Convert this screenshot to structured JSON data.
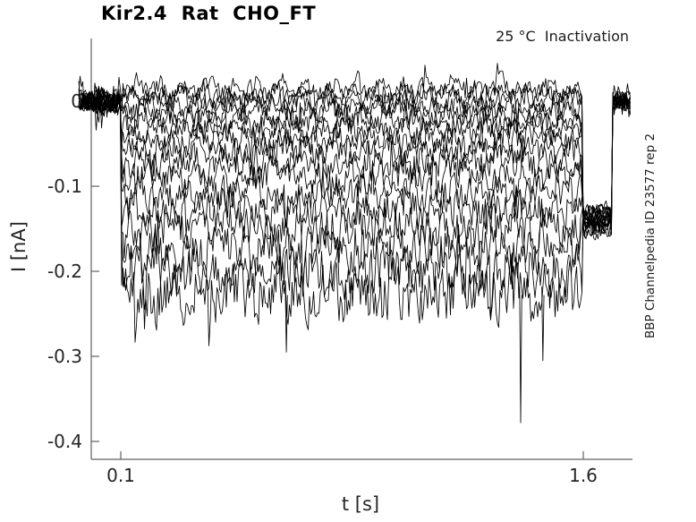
{
  "figure": {
    "title": "Kir2.4  Rat  CHO_FT",
    "condition": "25 °C  Inactivation",
    "watermark": "BBP Channelpedia ID 23577 rep 2"
  },
  "chart_data": {
    "type": "line",
    "title": "Kir2.4  Rat  CHO_FT",
    "subtitle": "25 °C  Inactivation",
    "side_annotation": "BBP Channelpedia ID 23577 rep 2",
    "xlabel": "t [s]",
    "ylabel": "I [nA]",
    "xlim": [
      0.007,
      1.76
    ],
    "ylim": [
      -0.421,
      0.074
    ],
    "xticks": [
      0.1,
      1.6
    ],
    "xtick_labels": [
      "0.1",
      "1.6"
    ],
    "yticks": [
      0,
      -0.1,
      -0.2,
      -0.3,
      -0.4
    ],
    "ytick_labels": [
      "0",
      "-0.1",
      "-0.2",
      "-0.3",
      "-0.4"
    ],
    "grid": false,
    "legend": false,
    "line_color": "#000000",
    "axis_color": "#606060",
    "label_color": "#262626",
    "protocol": {
      "description": "Inactivation protocol: ~0.05 s baseline at 0 nA, voltage step from t=0.1 s to t=1.6 s producing noisy current sweeps at graded levels, common tail current of about -0.14 nA until ~1.70 s, then return to 0 nA baseline until ~1.75 s.",
      "baseline_nA": 0,
      "step_start_s": 0.1,
      "step_end_s": 1.6,
      "tail_nA": -0.14,
      "tail_end_s": 1.695,
      "trace_end_s": 1.753
    },
    "sweeps": [
      {
        "level_nA": 0.015,
        "noise_nA": 0.009,
        "ripple_nA": 0.007
      },
      {
        "level_nA": 0.008,
        "noise_nA": 0.009,
        "ripple_nA": 0.007
      },
      {
        "level_nA": 0.001,
        "noise_nA": 0.01,
        "ripple_nA": 0.007
      },
      {
        "level_nA": -0.006,
        "noise_nA": 0.01,
        "ripple_nA": 0.007
      },
      {
        "level_nA": -0.014,
        "noise_nA": 0.01,
        "ripple_nA": 0.006
      },
      {
        "level_nA": -0.023,
        "noise_nA": 0.011,
        "ripple_nA": 0.006
      },
      {
        "level_nA": -0.033,
        "noise_nA": 0.011,
        "ripple_nA": 0.006
      },
      {
        "level_nA": -0.044,
        "noise_nA": 0.012,
        "ripple_nA": 0.005
      },
      {
        "level_nA": -0.057,
        "noise_nA": 0.013,
        "ripple_nA": 0.005
      },
      {
        "level_nA": -0.072,
        "noise_nA": 0.014,
        "ripple_nA": 0.005
      },
      {
        "level_nA": -0.089,
        "noise_nA": 0.015,
        "ripple_nA": 0.004
      },
      {
        "level_nA": -0.108,
        "noise_nA": 0.016,
        "ripple_nA": 0.004
      },
      {
        "level_nA": -0.128,
        "noise_nA": 0.018,
        "ripple_nA": 0.004
      },
      {
        "level_nA": -0.15,
        "noise_nA": 0.02,
        "ripple_nA": 0.003
      },
      {
        "level_nA": -0.175,
        "noise_nA": 0.022,
        "ripple_nA": 0.003
      },
      {
        "level_nA": -0.2,
        "noise_nA": 0.025,
        "ripple_nA": 0.003
      },
      {
        "level_nA": -0.228,
        "noise_nA": 0.028,
        "ripple_nA": 0.003
      }
    ],
    "spikes": [
      {
        "t_s": 0.637,
        "nA": -0.295
      },
      {
        "t_s": 1.397,
        "nA": -0.378
      },
      {
        "t_s": 1.469,
        "nA": -0.305
      }
    ]
  }
}
